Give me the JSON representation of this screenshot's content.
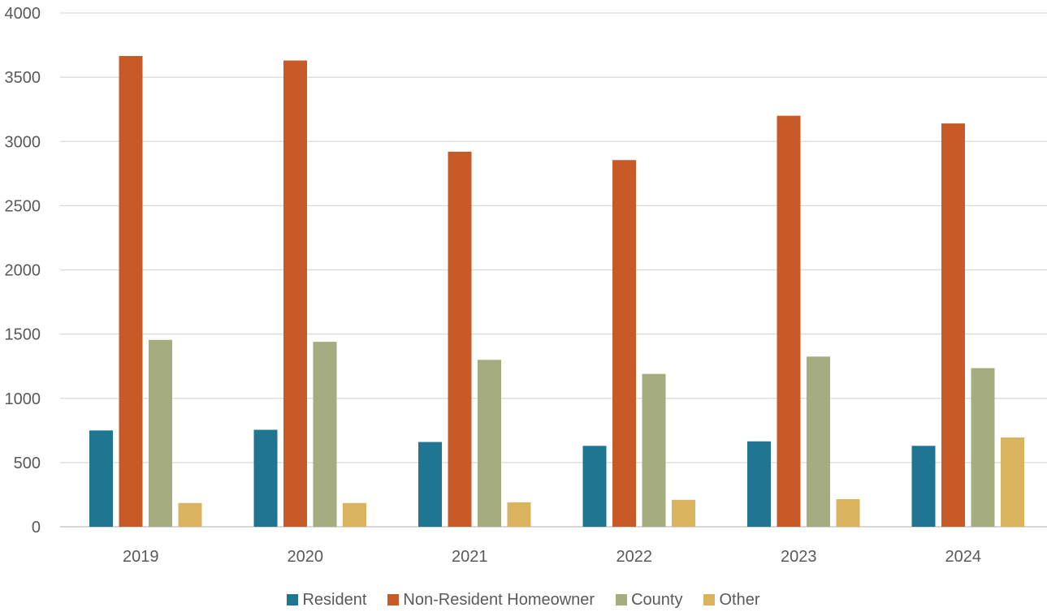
{
  "chart_data": {
    "type": "bar",
    "title": "",
    "xlabel": "",
    "ylabel": "",
    "categories": [
      "2019",
      "2020",
      "2021",
      "2022",
      "2023",
      "2024"
    ],
    "ylim": [
      0,
      4000
    ],
    "yticks": [
      0,
      500,
      1000,
      1500,
      2000,
      2500,
      3000,
      3500,
      4000
    ],
    "grid": true,
    "legend_position": "bottom",
    "series": [
      {
        "name": "Resident",
        "color": "#1F7592",
        "values": [
          750,
          755,
          660,
          630,
          665,
          630
        ]
      },
      {
        "name": "Non-Resident Homeowner",
        "color": "#C85A28",
        "values": [
          3665,
          3630,
          2920,
          2855,
          3200,
          3140
        ]
      },
      {
        "name": "County",
        "color": "#A5AD80",
        "values": [
          1455,
          1440,
          1300,
          1190,
          1325,
          1235
        ]
      },
      {
        "name": "Other",
        "color": "#D9B35E",
        "values": [
          185,
          185,
          190,
          210,
          215,
          695
        ]
      }
    ]
  }
}
